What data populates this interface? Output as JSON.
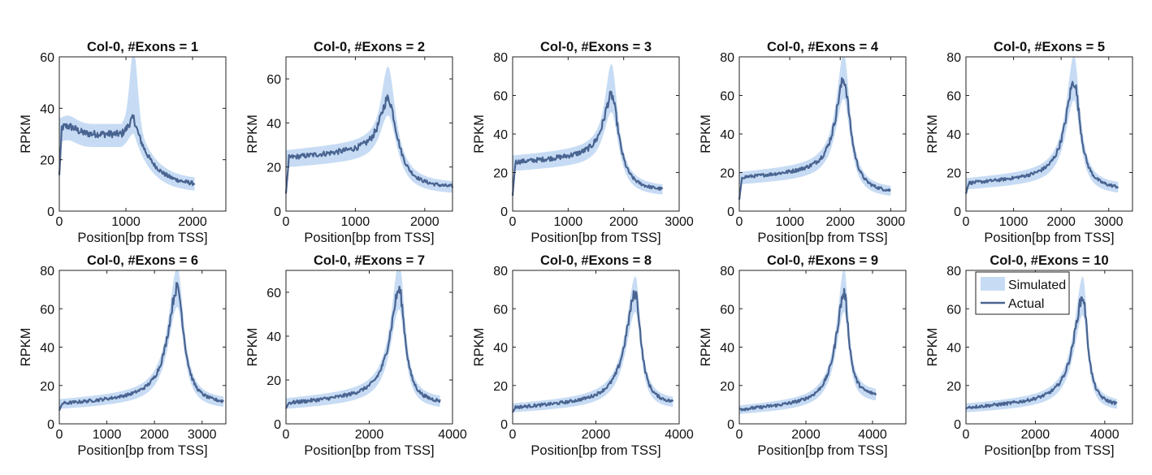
{
  "colors": {
    "simulated_band": "#c7dcf4",
    "actual_line": "#4a6491"
  },
  "chart_data": [
    {
      "type": "line",
      "title": "Col-0, #Exons = 1",
      "xlabel": "Position[bp from TSS]",
      "ylabel": "RPKM",
      "xlim": [
        0,
        2500
      ],
      "ylim": [
        0,
        60
      ],
      "xticks": [
        0,
        1000,
        2000
      ],
      "yticks": [
        0,
        20,
        40,
        60
      ],
      "x_end": 2030,
      "peak_x": 1120,
      "peak_actual": 36,
      "peak_sim_max": 59,
      "plateau": 30,
      "plateau_end": 950,
      "tail": 10,
      "start": 14,
      "series": [
        {
          "name": "Simulated"
        },
        {
          "name": "Actual"
        }
      ]
    },
    {
      "type": "line",
      "title": "Col-0, #Exons = 2",
      "xlabel": "Position[bp from TSS]",
      "ylabel": "RPKM",
      "xlim": [
        0,
        2400
      ],
      "ylim": [
        0,
        70
      ],
      "xticks": [
        0,
        1000,
        2000
      ],
      "yticks": [
        0,
        20,
        40,
        60
      ],
      "x_end": 2400,
      "peak_x": 1470,
      "peak_actual": 51,
      "peak_sim_max": 60,
      "plateau": 24,
      "tail": 10,
      "start": 8,
      "series": [
        {
          "name": "Simulated"
        },
        {
          "name": "Actual"
        }
      ]
    },
    {
      "type": "line",
      "title": "Col-0, #Exons = 3",
      "xlabel": "Position[bp from TSS]",
      "ylabel": "RPKM",
      "xlim": [
        0,
        3000
      ],
      "ylim": [
        0,
        80
      ],
      "xticks": [
        0,
        1000,
        2000,
        3000
      ],
      "yticks": [
        0,
        20,
        40,
        60,
        80
      ],
      "x_end": 2700,
      "peak_x": 1780,
      "peak_actual": 60,
      "peak_sim_max": 70,
      "plateau": 25,
      "tail": 10,
      "start": 8,
      "series": [
        {
          "name": "Simulated"
        },
        {
          "name": "Actual"
        }
      ]
    },
    {
      "type": "line",
      "title": "Col-0, #Exons = 4",
      "xlabel": "Position[bp from TSS]",
      "ylabel": "RPKM",
      "xlim": [
        0,
        3300
      ],
      "ylim": [
        0,
        80
      ],
      "xticks": [
        0,
        1000,
        2000,
        3000
      ],
      "yticks": [
        0,
        20,
        40,
        60,
        80
      ],
      "x_end": 3000,
      "peak_x": 2070,
      "peak_actual": 68,
      "peak_sim_max": 75,
      "plateau": 17,
      "tail": 9,
      "start": 6,
      "series": [
        {
          "name": "Simulated"
        },
        {
          "name": "Actual"
        }
      ]
    },
    {
      "type": "line",
      "title": "Col-0, #Exons = 5",
      "xlabel": "Position[bp from TSS]",
      "ylabel": "RPKM",
      "xlim": [
        0,
        3500
      ],
      "ylim": [
        0,
        80
      ],
      "xticks": [
        0,
        1000,
        2000,
        3000
      ],
      "yticks": [
        0,
        20,
        40,
        60,
        80
      ],
      "x_end": 3200,
      "peak_x": 2270,
      "peak_actual": 67,
      "peak_sim_max": 74,
      "plateau": 14,
      "tail": 11,
      "start": 9,
      "series": [
        {
          "name": "Simulated"
        },
        {
          "name": "Actual"
        }
      ]
    },
    {
      "type": "line",
      "title": "Col-0, #Exons = 6",
      "xlabel": "Position[bp from TSS]",
      "ylabel": "RPKM",
      "xlim": [
        0,
        3500
      ],
      "ylim": [
        0,
        80
      ],
      "xticks": [
        0,
        1000,
        2000,
        3000
      ],
      "yticks": [
        0,
        20,
        40,
        60,
        80
      ],
      "x_end": 3450,
      "peak_x": 2480,
      "peak_actual": 71,
      "peak_sim_max": 75,
      "plateau": 10,
      "tail": 10,
      "start": 7,
      "series": [
        {
          "name": "Simulated"
        },
        {
          "name": "Actual"
        }
      ]
    },
    {
      "type": "line",
      "title": "Col-0, #Exons = 7",
      "xlabel": "Position[bp from TSS]",
      "ylabel": "RPKM",
      "xlim": [
        0,
        4000
      ],
      "ylim": [
        0,
        70
      ],
      "xticks": [
        0,
        2000,
        4000
      ],
      "yticks": [
        0,
        20,
        40,
        60
      ],
      "x_end": 3700,
      "peak_x": 2720,
      "peak_actual": 61,
      "peak_sim_max": 68,
      "plateau": 9,
      "tail": 9,
      "start": 7,
      "series": [
        {
          "name": "Simulated"
        },
        {
          "name": "Actual"
        }
      ]
    },
    {
      "type": "line",
      "title": "Col-0, #Exons = 8",
      "xlabel": "Position[bp from TSS]",
      "ylabel": "RPKM",
      "xlim": [
        0,
        4000
      ],
      "ylim": [
        0,
        80
      ],
      "xticks": [
        0,
        2000,
        4000
      ],
      "yticks": [
        0,
        20,
        40,
        60,
        80
      ],
      "x_end": 3850,
      "peak_x": 2950,
      "peak_actual": 68,
      "peak_sim_max": 70,
      "plateau": 8,
      "tail": 10,
      "start": 6,
      "series": [
        {
          "name": "Simulated"
        },
        {
          "name": "Actual"
        }
      ]
    },
    {
      "type": "line",
      "title": "Col-0, #Exons = 9",
      "xlabel": "Position[bp from TSS]",
      "ylabel": "RPKM",
      "xlim": [
        0,
        5000
      ],
      "ylim": [
        0,
        80
      ],
      "xticks": [
        0,
        2000,
        4000
      ],
      "yticks": [
        0,
        20,
        40,
        60,
        80
      ],
      "x_end": 4100,
      "peak_x": 3150,
      "peak_actual": 68,
      "peak_sim_max": 74,
      "plateau": 7,
      "tail": 14,
      "start": 8,
      "series": [
        {
          "name": "Simulated"
        },
        {
          "name": "Actual"
        }
      ]
    },
    {
      "type": "line",
      "title": "Col-0, #Exons = 10",
      "xlabel": "Position[bp from TSS]",
      "ylabel": "RPKM",
      "xlim": [
        0,
        4800
      ],
      "ylim": [
        0,
        80
      ],
      "xticks": [
        0,
        2000,
        4000
      ],
      "yticks": [
        0,
        20,
        40,
        60,
        80
      ],
      "x_end": 4350,
      "peak_x": 3370,
      "peak_actual": 66,
      "peak_sim_max": 70,
      "plateau": 8,
      "tail": 9,
      "start": 8,
      "series": [
        {
          "name": "Simulated"
        },
        {
          "name": "Actual"
        }
      ],
      "legend": {
        "position": "top-left",
        "entries": [
          "Simulated",
          "Actual"
        ]
      }
    }
  ]
}
